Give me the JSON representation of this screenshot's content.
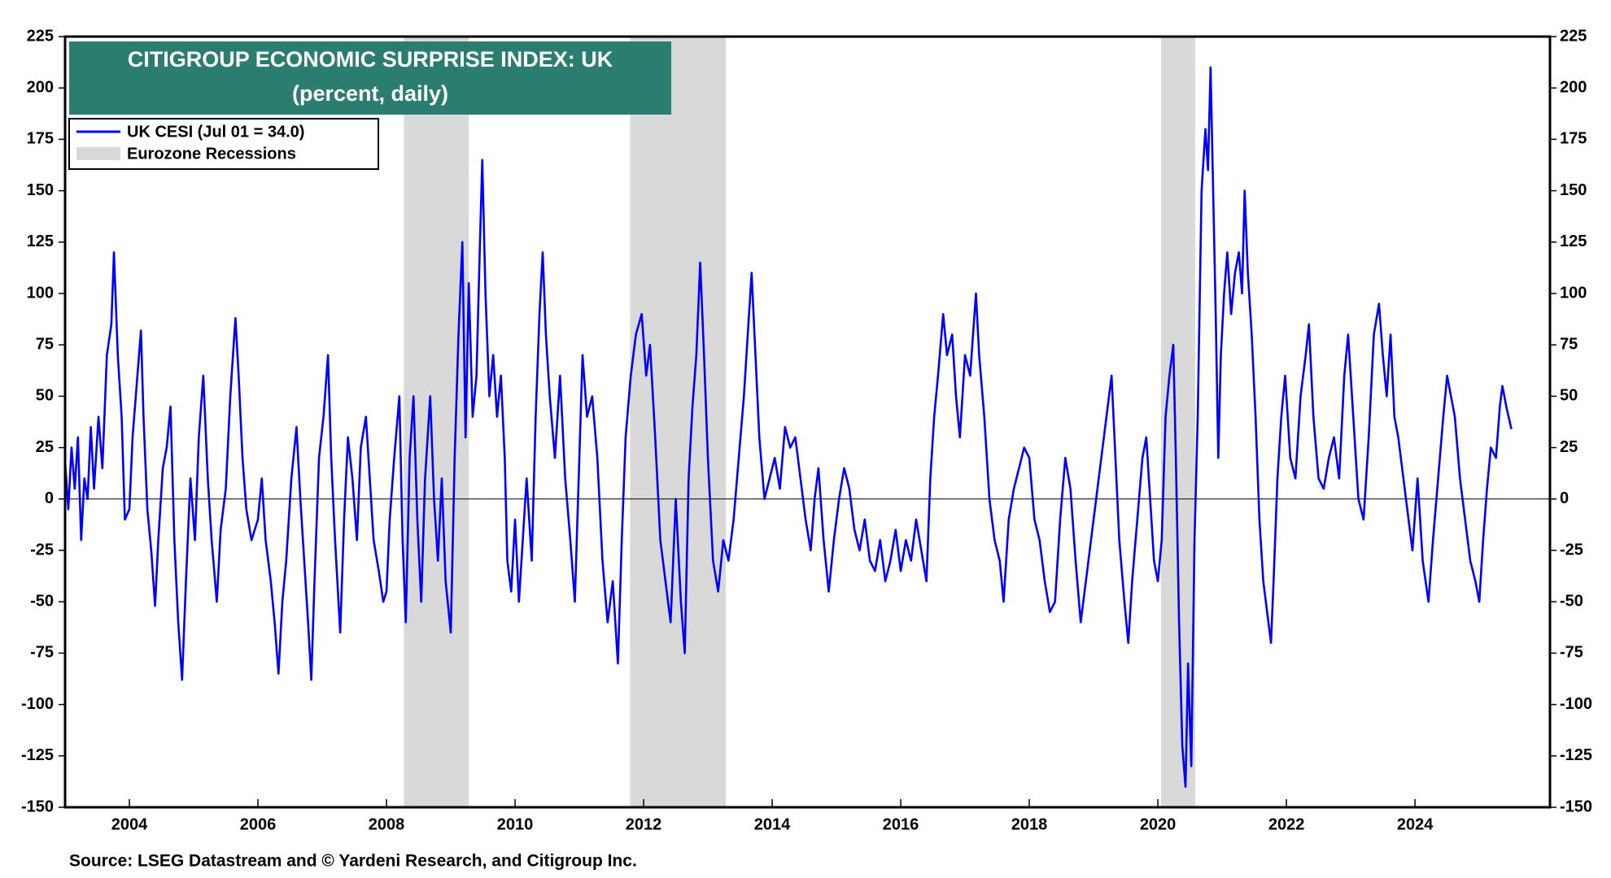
{
  "chart_data": {
    "type": "line",
    "title": "CITIGROUP ECONOMIC SURPRISE INDEX: UK",
    "subtitle": "(percent, daily)",
    "source": "Source: LSEG Datastream and © Yardeni Research, and Citigroup Inc.",
    "xlim": [
      2003,
      2026.1
    ],
    "ylim": [
      -150,
      225
    ],
    "xticks": [
      2004,
      2006,
      2008,
      2010,
      2012,
      2014,
      2016,
      2018,
      2020,
      2022,
      2024
    ],
    "yticks": [
      -150,
      -125,
      -100,
      -75,
      -50,
      -25,
      0,
      25,
      50,
      75,
      100,
      125,
      150,
      175,
      200,
      225
    ],
    "zero_line": true,
    "recessions": {
      "name": "Eurozone Recessions",
      "color": "#d9d9d9",
      "periods": [
        [
          2008.27,
          2009.28
        ],
        [
          2011.79,
          2013.28
        ],
        [
          2020.05,
          2020.58
        ]
      ]
    },
    "x": [
      2003.0,
      2003.05,
      2003.1,
      2003.15,
      2003.2,
      2003.25,
      2003.3,
      2003.35,
      2003.4,
      2003.45,
      2003.52,
      2003.58,
      2003.65,
      2003.72,
      2003.76,
      2003.82,
      2003.88,
      2003.93,
      2004.0,
      2004.05,
      2004.1,
      2004.18,
      2004.22,
      2004.28,
      2004.34,
      2004.4,
      2004.45,
      2004.52,
      2004.58,
      2004.64,
      2004.7,
      2004.76,
      2004.82,
      2004.88,
      2004.95,
      2005.02,
      2005.08,
      2005.15,
      2005.22,
      2005.28,
      2005.36,
      2005.42,
      2005.5,
      2005.57,
      2005.65,
      2005.7,
      2005.76,
      2005.82,
      2005.9,
      2006.0,
      2006.06,
      2006.12,
      2006.2,
      2006.26,
      2006.32,
      2006.38,
      2006.44,
      2006.52,
      2006.6,
      2006.66,
      2006.72,
      2006.78,
      2006.83,
      2006.88,
      2006.95,
      2007.02,
      2007.09,
      2007.14,
      2007.2,
      2007.28,
      2007.34,
      2007.4,
      2007.47,
      2007.54,
      2007.6,
      2007.68,
      2007.74,
      2007.8,
      2007.88,
      2007.95,
      2008.0,
      2008.05,
      2008.12,
      2008.2,
      2008.25,
      2008.3,
      2008.36,
      2008.42,
      2008.48,
      2008.54,
      2008.6,
      2008.68,
      2008.74,
      2008.8,
      2008.86,
      2008.92,
      2009.0,
      2009.06,
      2009.12,
      2009.18,
      2009.23,
      2009.28,
      2009.34,
      2009.4,
      2009.45,
      2009.49,
      2009.54,
      2009.6,
      2009.66,
      2009.72,
      2009.78,
      2009.84,
      2009.88,
      2009.94,
      2010.0,
      2010.06,
      2010.12,
      2010.18,
      2010.26,
      2010.32,
      2010.38,
      2010.43,
      2010.48,
      2010.54,
      2010.62,
      2010.7,
      2010.78,
      2010.86,
      2010.93,
      2010.99,
      2011.05,
      2011.12,
      2011.2,
      2011.28,
      2011.36,
      2011.44,
      2011.52,
      2011.6,
      2011.66,
      2011.72,
      2011.8,
      2011.88,
      2011.97,
      2012.04,
      2012.1,
      2012.18,
      2012.26,
      2012.34,
      2012.42,
      2012.5,
      2012.58,
      2012.64,
      2012.7,
      2012.76,
      2012.82,
      2012.88,
      2012.94,
      2013.0,
      2013.08,
      2013.16,
      2013.24,
      2013.32,
      2013.4,
      2013.48,
      2013.56,
      2013.62,
      2013.68,
      2013.74,
      2013.8,
      2013.88,
      2013.96,
      2014.04,
      2014.12,
      2014.2,
      2014.28,
      2014.36,
      2014.44,
      2014.52,
      2014.6,
      2014.66,
      2014.72,
      2014.8,
      2014.88,
      2014.96,
      2015.04,
      2015.12,
      2015.2,
      2015.28,
      2015.36,
      2015.44,
      2015.52,
      2015.6,
      2015.68,
      2015.76,
      2015.84,
      2015.92,
      2016.0,
      2016.08,
      2016.16,
      2016.24,
      2016.32,
      2016.4,
      2016.46,
      2016.52,
      2016.58,
      2016.66,
      2016.72,
      2016.8,
      2016.86,
      2016.92,
      2017.0,
      2017.08,
      2017.17,
      2017.22,
      2017.3,
      2017.38,
      2017.46,
      2017.54,
      2017.6,
      2017.68,
      2017.76,
      2017.84,
      2017.92,
      2018.0,
      2018.08,
      2018.16,
      2018.24,
      2018.32,
      2018.4,
      2018.48,
      2018.56,
      2018.64,
      2018.72,
      2018.8,
      2018.88,
      2018.96,
      2019.04,
      2019.12,
      2019.2,
      2019.28,
      2019.34,
      2019.4,
      2019.48,
      2019.54,
      2019.6,
      2019.68,
      2019.76,
      2019.82,
      2019.88,
      2019.94,
      2020.0,
      2020.06,
      2020.12,
      2020.18,
      2020.24,
      2020.28,
      2020.33,
      2020.38,
      2020.43,
      2020.47,
      2020.52,
      2020.57,
      2020.62,
      2020.68,
      2020.74,
      2020.78,
      2020.82,
      2020.86,
      2020.9,
      2020.94,
      2020.98,
      2021.03,
      2021.08,
      2021.14,
      2021.2,
      2021.26,
      2021.31,
      2021.35,
      2021.4,
      2021.46,
      2021.52,
      2021.58,
      2021.64,
      2021.7,
      2021.76,
      2021.8,
      2021.86,
      2021.92,
      2021.98,
      2022.06,
      2022.14,
      2022.22,
      2022.3,
      2022.35,
      2022.42,
      2022.5,
      2022.58,
      2022.66,
      2022.74,
      2022.82,
      2022.9,
      2022.96,
      2023.04,
      2023.12,
      2023.2,
      2023.28,
      2023.36,
      2023.44,
      2023.5,
      2023.56,
      2023.62,
      2023.68,
      2023.74,
      2023.82,
      2023.9,
      2023.96,
      2024.04,
      2024.12,
      2024.21,
      2024.28,
      2024.36,
      2024.44,
      2024.5,
      2024.56,
      2024.62,
      2024.7,
      2024.78,
      2024.86,
      2024.94,
      2025.0,
      2025.06,
      2025.12,
      2025.18,
      2025.26,
      2025.32,
      2025.36,
      2025.42,
      2025.5
    ],
    "series": [
      {
        "name": "UK CESI (Jul 01 = 34.0)",
        "color": "#0000ff",
        "values": [
          18,
          -5,
          25,
          5,
          30,
          -20,
          10,
          0,
          35,
          5,
          40,
          15,
          70,
          85,
          120,
          70,
          40,
          -10,
          -5,
          30,
          50,
          82,
          40,
          -5,
          -25,
          -52,
          -20,
          15,
          25,
          45,
          -20,
          -60,
          -88,
          -40,
          10,
          -20,
          30,
          60,
          10,
          -20,
          -50,
          -15,
          5,
          50,
          88,
          60,
          20,
          -5,
          -20,
          -10,
          10,
          -20,
          -40,
          -60,
          -85,
          -50,
          -30,
          10,
          35,
          0,
          -30,
          -60,
          -88,
          -40,
          20,
          40,
          70,
          20,
          -20,
          -65,
          -10,
          30,
          10,
          -20,
          25,
          40,
          10,
          -20,
          -35,
          -50,
          -45,
          -10,
          20,
          50,
          -20,
          -60,
          20,
          50,
          -10,
          -50,
          10,
          50,
          0,
          -30,
          10,
          -40,
          -65,
          20,
          80,
          125,
          30,
          105,
          40,
          60,
          120,
          165,
          100,
          50,
          70,
          40,
          60,
          20,
          -30,
          -45,
          -10,
          -50,
          -20,
          10,
          -30,
          40,
          90,
          120,
          80,
          50,
          20,
          60,
          10,
          -20,
          -50,
          10,
          70,
          40,
          50,
          20,
          -30,
          -60,
          -40,
          -80,
          -20,
          30,
          60,
          80,
          90,
          60,
          75,
          30,
          -20,
          -40,
          -60,
          0,
          -50,
          -75,
          10,
          45,
          70,
          115,
          70,
          20,
          -30,
          -45,
          -20,
          -30,
          -10,
          20,
          50,
          80,
          110,
          70,
          30,
          0,
          10,
          20,
          5,
          35,
          25,
          30,
          10,
          -10,
          -25,
          0,
          15,
          -20,
          -45,
          -20,
          0,
          15,
          5,
          -15,
          -25,
          -10,
          -30,
          -35,
          -20,
          -40,
          -30,
          -15,
          -35,
          -20,
          -30,
          -10,
          -25,
          -40,
          10,
          40,
          60,
          90,
          70,
          80,
          50,
          30,
          70,
          60,
          100,
          70,
          40,
          0,
          -20,
          -30,
          -50,
          -10,
          5,
          15,
          25,
          20,
          -10,
          -20,
          -40,
          -55,
          -50,
          -10,
          20,
          5,
          -30,
          -60,
          -40,
          -20,
          0,
          20,
          40,
          60,
          20,
          -20,
          -50,
          -70,
          -40,
          -10,
          20,
          30,
          0,
          -30,
          -40,
          -20,
          40,
          60,
          75,
          20,
          -60,
          -120,
          -140,
          -80,
          -130,
          -20,
          40,
          150,
          180,
          160,
          210,
          150,
          90,
          20,
          70,
          100,
          120,
          90,
          110,
          120,
          100,
          150,
          110,
          80,
          40,
          -10,
          -40,
          -55,
          -70,
          -40,
          10,
          40,
          60,
          20,
          10,
          50,
          70,
          85,
          40,
          10,
          5,
          20,
          30,
          10,
          60,
          80,
          40,
          0,
          -10,
          30,
          80,
          95,
          70,
          50,
          80,
          40,
          30,
          10,
          -10,
          -25,
          10,
          -30,
          -50,
          -20,
          10,
          40,
          60,
          50,
          40,
          10,
          -10,
          -30,
          -40,
          -50,
          -20,
          5,
          25,
          20,
          45,
          55,
          45,
          34
        ]
      }
    ]
  }
}
